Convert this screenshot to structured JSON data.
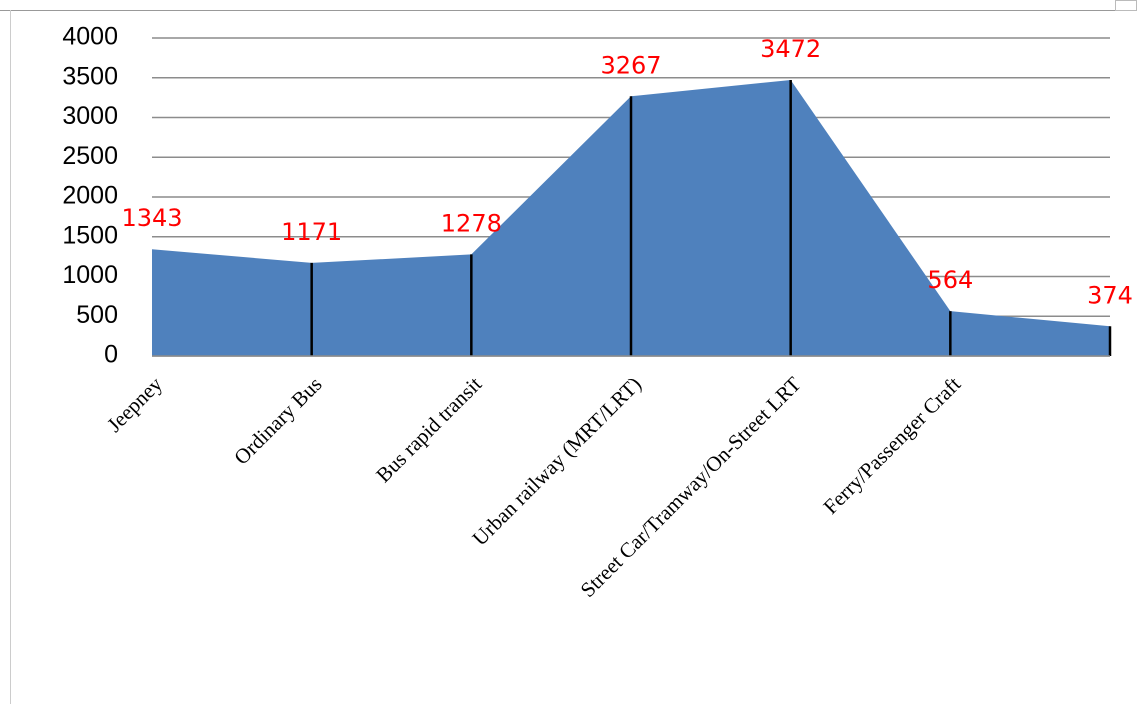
{
  "chart_data": {
    "type": "area",
    "categories": [
      "Jeepney",
      "Ordinary Bus",
      "Bus rapid transit",
      "Urban railway (MRT/LRT)",
      "Street Car/Tramway/On-Street LRT",
      "Ferry/Passenger Craft",
      null
    ],
    "values": [
      1343,
      1171,
      1278,
      3267,
      3472,
      564,
      374
    ],
    "color": "#4f81bd",
    "ylim": [
      0,
      4000
    ],
    "yticks": [
      0,
      500,
      1000,
      1500,
      2000,
      2500,
      3000,
      3500,
      4000
    ],
    "grid": true
  }
}
